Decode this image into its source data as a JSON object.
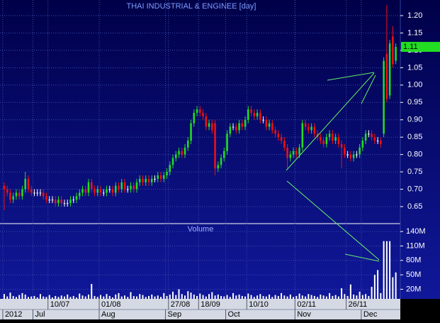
{
  "chart_data": {
    "type": "candlestick",
    "title": "THAI INDUSTRIAL & ENGINEE [day]",
    "up_color": "#22dd22",
    "down_color": "#ee1111",
    "grid": true,
    "xlim": [
      -1.4,
      131.5
    ],
    "ylim": [
      0.603,
      1.245
    ],
    "yticks": [
      0.65,
      {
        "value": 0.7,
        "label": "0.70"
      },
      0.75,
      {
        "value": 0.8,
        "label": "0.80"
      },
      0.85,
      {
        "value": 0.9,
        "label": "0.90"
      },
      0.95,
      {
        "value": 1.0,
        "label": "1.00"
      },
      1.05,
      {
        "value": 1.1,
        "label": "1.10"
      },
      1.15,
      {
        "value": 1.2,
        "label": "1.20"
      }
    ],
    "last_price": 1.11,
    "xticks": [
      {
        "value": 15,
        "label": "10/07"
      },
      {
        "value": 32,
        "label": "01/08"
      },
      {
        "value": 55,
        "label": "27/08"
      },
      {
        "value": 65,
        "label": "18/09"
      },
      {
        "value": 81,
        "label": "10/10"
      },
      {
        "value": 97,
        "label": "02/11"
      },
      {
        "value": 114,
        "label": "26/11"
      }
    ],
    "month_ticks": [
      {
        "value": 0,
        "label": "2012"
      },
      {
        "value": 10,
        "label": "Jul"
      },
      {
        "value": 32,
        "label": "Aug"
      },
      {
        "value": 54,
        "label": "Sep"
      },
      {
        "value": 74,
        "label": "Oct"
      },
      {
        "value": 97,
        "label": "Nov"
      },
      {
        "value": 119,
        "label": "Dec"
      }
    ],
    "open": [
      0.71,
      0.7,
      0.69,
      0.67,
      0.68,
      0.69,
      0.68,
      0.7,
      0.73,
      0.7,
      0.69,
      0.69,
      0.69,
      0.69,
      0.68,
      0.67,
      0.67,
      0.67,
      0.66,
      0.67,
      0.66,
      0.66,
      0.66,
      0.67,
      0.67,
      0.68,
      0.69,
      0.7,
      0.69,
      0.72,
      0.7,
      0.69,
      0.7,
      0.69,
      0.69,
      0.7,
      0.7,
      0.69,
      0.71,
      0.7,
      0.72,
      0.7,
      0.7,
      0.71,
      0.7,
      0.72,
      0.73,
      0.72,
      0.73,
      0.72,
      0.73,
      0.73,
      0.74,
      0.73,
      0.74,
      0.75,
      0.77,
      0.79,
      0.8,
      0.81,
      0.8,
      0.82,
      0.84,
      0.89,
      0.92,
      0.93,
      0.92,
      0.91,
      0.88,
      0.89,
      0.89,
      0.76,
      0.77,
      0.79,
      0.81,
      0.86,
      0.88,
      0.88,
      0.87,
      0.89,
      0.88,
      0.9,
      0.93,
      0.92,
      0.91,
      0.92,
      0.9,
      0.9,
      0.88,
      0.89,
      0.87,
      0.86,
      0.85,
      0.84,
      0.82,
      0.79,
      0.8,
      0.81,
      0.8,
      0.82,
      0.89,
      0.88,
      0.87,
      0.88,
      0.86,
      0.85,
      0.84,
      0.83,
      0.85,
      0.86,
      0.84,
      0.85,
      0.83,
      0.82,
      0.8,
      0.8,
      0.79,
      0.8,
      0.8,
      0.82,
      0.84,
      0.86,
      0.86,
      0.85,
      0.84,
      0.84,
      0.86,
      1.09,
      0.97,
      1.14,
      1.07
    ],
    "high": [
      0.72,
      0.71,
      0.7,
      0.69,
      0.7,
      0.7,
      0.71,
      0.75,
      0.74,
      0.71,
      0.7,
      0.7,
      0.7,
      0.7,
      0.69,
      0.68,
      0.68,
      0.68,
      0.68,
      0.68,
      0.67,
      0.67,
      0.68,
      0.68,
      0.69,
      0.7,
      0.71,
      0.71,
      0.73,
      0.73,
      0.71,
      0.71,
      0.71,
      0.7,
      0.71,
      0.71,
      0.71,
      0.72,
      0.72,
      0.73,
      0.73,
      0.71,
      0.72,
      0.72,
      0.73,
      0.74,
      0.74,
      0.74,
      0.74,
      0.74,
      0.74,
      0.75,
      0.75,
      0.75,
      0.76,
      0.78,
      0.8,
      0.81,
      0.82,
      0.82,
      0.83,
      0.85,
      0.9,
      0.93,
      0.94,
      0.94,
      0.93,
      0.92,
      0.9,
      0.9,
      0.9,
      0.78,
      0.8,
      0.82,
      0.87,
      0.89,
      0.89,
      0.89,
      0.9,
      0.9,
      0.91,
      0.94,
      0.94,
      0.93,
      0.93,
      0.93,
      0.91,
      0.91,
      0.9,
      0.9,
      0.88,
      0.87,
      0.86,
      0.85,
      0.83,
      0.81,
      0.82,
      0.82,
      0.83,
      0.9,
      0.9,
      0.89,
      0.89,
      0.89,
      0.87,
      0.86,
      0.85,
      0.86,
      0.87,
      0.87,
      0.86,
      0.86,
      0.84,
      0.83,
      0.81,
      0.81,
      0.81,
      0.81,
      0.83,
      0.85,
      0.87,
      0.87,
      0.87,
      0.86,
      0.85,
      0.85,
      1.08,
      1.23,
      1.13,
      1.17,
      1.12
    ],
    "low": [
      0.64,
      0.68,
      0.66,
      0.66,
      0.67,
      0.67,
      0.67,
      0.69,
      0.69,
      0.68,
      0.68,
      0.68,
      0.68,
      0.67,
      0.66,
      0.66,
      0.66,
      0.65,
      0.65,
      0.65,
      0.65,
      0.65,
      0.65,
      0.66,
      0.66,
      0.67,
      0.68,
      0.68,
      0.68,
      0.69,
      0.68,
      0.68,
      0.68,
      0.68,
      0.68,
      0.69,
      0.68,
      0.68,
      0.69,
      0.69,
      0.69,
      0.69,
      0.69,
      0.69,
      0.69,
      0.71,
      0.71,
      0.71,
      0.71,
      0.71,
      0.72,
      0.72,
      0.72,
      0.72,
      0.73,
      0.74,
      0.76,
      0.78,
      0.79,
      0.79,
      0.79,
      0.81,
      0.83,
      0.88,
      0.91,
      0.91,
      0.9,
      0.87,
      0.87,
      0.86,
      0.74,
      0.75,
      0.76,
      0.78,
      0.8,
      0.85,
      0.87,
      0.86,
      0.86,
      0.87,
      0.87,
      0.89,
      0.91,
      0.9,
      0.9,
      0.89,
      0.89,
      0.87,
      0.87,
      0.86,
      0.85,
      0.84,
      0.83,
      0.81,
      0.76,
      0.78,
      0.79,
      0.79,
      0.79,
      0.81,
      0.87,
      0.86,
      0.86,
      0.85,
      0.84,
      0.83,
      0.82,
      0.82,
      0.84,
      0.83,
      0.83,
      0.82,
      0.76,
      0.79,
      0.79,
      0.78,
      0.78,
      0.79,
      0.79,
      0.81,
      0.83,
      0.85,
      0.84,
      0.83,
      0.83,
      0.82,
      0.85,
      0.95,
      0.96,
      1.05,
      1.06
    ],
    "close": [
      0.7,
      0.69,
      0.67,
      0.68,
      0.69,
      0.68,
      0.7,
      0.73,
      0.7,
      0.69,
      0.69,
      0.69,
      0.69,
      0.68,
      0.67,
      0.67,
      0.67,
      0.66,
      0.67,
      0.66,
      0.66,
      0.66,
      0.67,
      0.67,
      0.68,
      0.69,
      0.7,
      0.69,
      0.72,
      0.7,
      0.69,
      0.7,
      0.69,
      0.69,
      0.7,
      0.7,
      0.69,
      0.71,
      0.7,
      0.72,
      0.7,
      0.7,
      0.71,
      0.7,
      0.72,
      0.73,
      0.72,
      0.73,
      0.72,
      0.73,
      0.73,
      0.74,
      0.73,
      0.74,
      0.75,
      0.77,
      0.79,
      0.8,
      0.81,
      0.8,
      0.82,
      0.84,
      0.89,
      0.92,
      0.93,
      0.92,
      0.91,
      0.88,
      0.89,
      0.87,
      0.76,
      0.77,
      0.79,
      0.81,
      0.86,
      0.88,
      0.88,
      0.87,
      0.89,
      0.88,
      0.9,
      0.93,
      0.92,
      0.91,
      0.92,
      0.9,
      0.9,
      0.88,
      0.89,
      0.87,
      0.86,
      0.85,
      0.84,
      0.82,
      0.79,
      0.8,
      0.81,
      0.8,
      0.82,
      0.89,
      0.88,
      0.87,
      0.88,
      0.86,
      0.85,
      0.84,
      0.83,
      0.85,
      0.86,
      0.84,
      0.85,
      0.83,
      0.82,
      0.8,
      0.8,
      0.79,
      0.8,
      0.8,
      0.82,
      0.84,
      0.86,
      0.86,
      0.85,
      0.84,
      0.84,
      0.83,
      1.07,
      0.96,
      1.12,
      1.06,
      1.11
    ],
    "volume": {
      "title": "Volume",
      "color": "#ffffff",
      "ylim": [
        0,
        155
      ],
      "yticks": [
        {
          "value": 20,
          "label": "20M"
        },
        {
          "value": 50,
          "label": "50M"
        },
        {
          "value": 80,
          "label": "80M"
        },
        {
          "value": 110,
          "label": "110M"
        },
        {
          "value": 140,
          "label": "140M"
        }
      ],
      "values": [
        10,
        5,
        13,
        6,
        4,
        8,
        12,
        9,
        4,
        5,
        6,
        3,
        10,
        5,
        4,
        8,
        3,
        6,
        4,
        7,
        5,
        9,
        4,
        6,
        3,
        11,
        7,
        5,
        9,
        31,
        6,
        4,
        8,
        5,
        10,
        6,
        3,
        9,
        12,
        5,
        7,
        4,
        14,
        6,
        5,
        10,
        8,
        4,
        6,
        9,
        5,
        7,
        4,
        12,
        6,
        9,
        15,
        8,
        20,
        10,
        7,
        16,
        13,
        9,
        6,
        11,
        8,
        5,
        10,
        14,
        7,
        9,
        6,
        5,
        8,
        4,
        12,
        7,
        9,
        6,
        5,
        11,
        8,
        4,
        7,
        10,
        6,
        5,
        9,
        4,
        8,
        6,
        12,
        7,
        5,
        9,
        4,
        6,
        11,
        7,
        5,
        10,
        8,
        6,
        4,
        9,
        7,
        5,
        12,
        6,
        8,
        5,
        22,
        10,
        6,
        30,
        9,
        7,
        15,
        8,
        10,
        6,
        25,
        50,
        60,
        12,
        120,
        120,
        120,
        45,
        55
      ]
    }
  }
}
